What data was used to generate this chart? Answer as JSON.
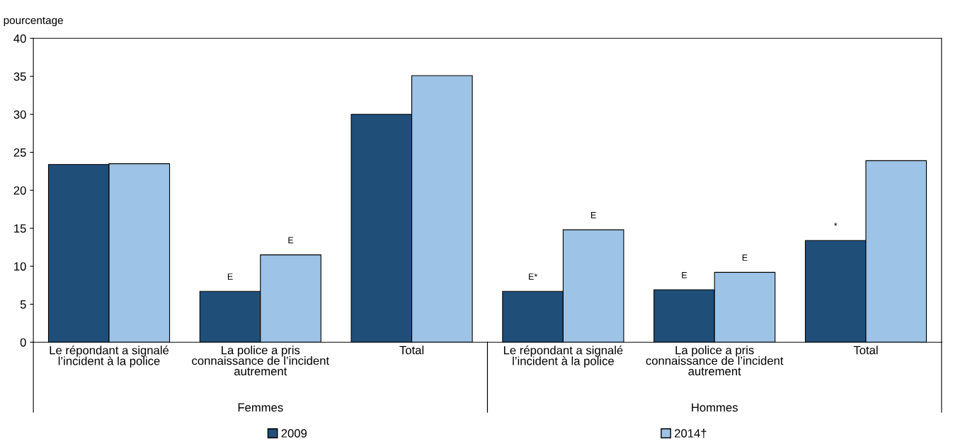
{
  "chart_data": {
    "type": "bar",
    "ylabel": "pourcentage",
    "categories": [
      "Le répondant a signalé\nl’incident à la police",
      "La police a pris\nconnaissance de l’incident\nautrement",
      "Total",
      "Le répondant a signalé\nl’incident à la police",
      "La police a pris\nconnaissance de l’incident\nautrement",
      "Total"
    ],
    "series": [
      {
        "name": "2009",
        "color": "#1f4e79",
        "values": [
          23.4,
          6.7,
          30.0,
          6.7,
          6.9,
          13.4
        ],
        "value_labels": [
          null,
          "E",
          null,
          "E*",
          "E",
          "*"
        ]
      },
      {
        "name": "2014†",
        "color": "#9dc3e6",
        "values": [
          23.5,
          11.5,
          35.1,
          14.8,
          9.2,
          23.9
        ],
        "value_labels": [
          null,
          "E",
          null,
          "E",
          "E",
          null
        ]
      }
    ],
    "annotations": [
      "Femmes",
      "Hommes"
    ],
    "ylim": [
      0,
      40
    ],
    "yticks": [
      0,
      5,
      10,
      15,
      20,
      25,
      30,
      35,
      40
    ],
    "grid": false,
    "legend": "bottom"
  }
}
